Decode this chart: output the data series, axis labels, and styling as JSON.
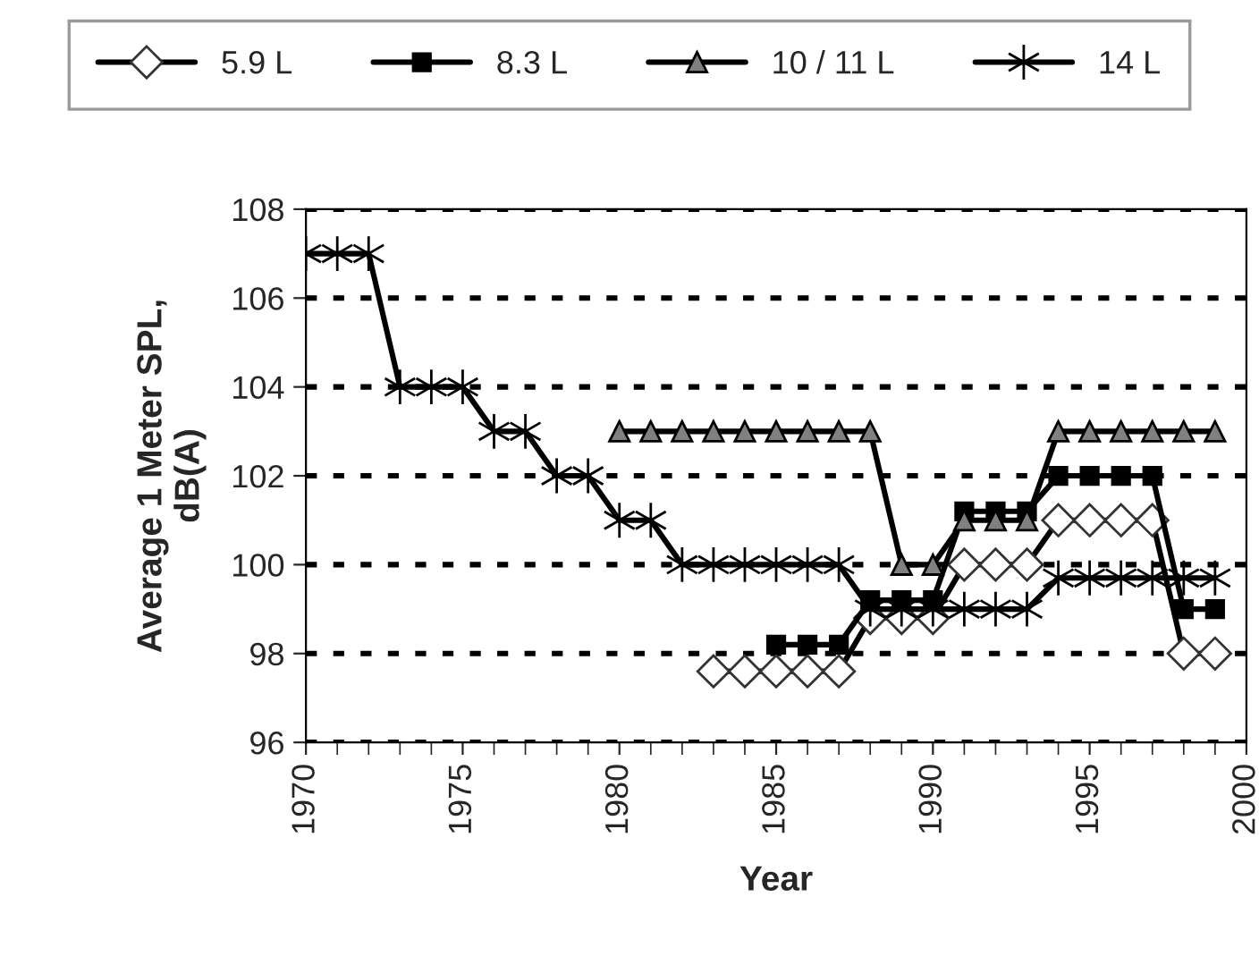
{
  "chart_data": {
    "type": "line",
    "xlabel": "Year",
    "ylabel": "Average 1 Meter SPL,\ndB(A)",
    "xlim": [
      1970,
      2000
    ],
    "xticks": [
      1970,
      1975,
      1980,
      1985,
      1990,
      1995,
      2000
    ],
    "ylim": [
      96,
      108
    ],
    "yticks": [
      96,
      98,
      100,
      102,
      104,
      106,
      108
    ],
    "grid": "y",
    "legend": "top",
    "line_style": "solid",
    "series": [
      {
        "name": "5.9 L",
        "color": "#000000",
        "marker": "diamond",
        "x": [
          1983,
          1984,
          1985,
          1986,
          1987,
          1988,
          1989,
          1990,
          1991,
          1992,
          1993,
          1994,
          1995,
          1996,
          1997,
          1998,
          1999
        ],
        "values": [
          97.6,
          97.6,
          97.6,
          97.6,
          97.6,
          98.8,
          98.8,
          98.8,
          100,
          100,
          100,
          101,
          101,
          101,
          101,
          98,
          98
        ]
      },
      {
        "name": "8.3 L",
        "color": "#000000",
        "marker": "square",
        "x": [
          1985,
          1986,
          1987,
          1988,
          1989,
          1990,
          1991,
          1992,
          1993,
          1994,
          1995,
          1996,
          1997,
          1998,
          1999
        ],
        "values": [
          98.2,
          98.2,
          98.2,
          99.2,
          99.2,
          99.2,
          101.2,
          101.2,
          101.2,
          102,
          102,
          102,
          102,
          99,
          99
        ]
      },
      {
        "name": "10 / 11 L",
        "color": "#000000",
        "marker": "triangle",
        "x": [
          1980,
          1981,
          1982,
          1983,
          1984,
          1985,
          1986,
          1987,
          1988,
          1989,
          1990,
          1991,
          1992,
          1993,
          1994,
          1995,
          1996,
          1997,
          1998,
          1999
        ],
        "values": [
          103,
          103,
          103,
          103,
          103,
          103,
          103,
          103,
          103,
          100,
          100,
          101,
          101,
          101,
          103,
          103,
          103,
          103,
          103,
          103
        ]
      },
      {
        "name": "14 L",
        "color": "#000000",
        "marker": "cross",
        "x": [
          1970,
          1971,
          1972,
          1973,
          1974,
          1975,
          1976,
          1977,
          1978,
          1979,
          1980,
          1981,
          1982,
          1983,
          1984,
          1985,
          1986,
          1987,
          1988,
          1989,
          1990,
          1991,
          1992,
          1993,
          1994,
          1995,
          1996,
          1997,
          1998,
          1999
        ],
        "values": [
          107,
          107,
          107,
          104,
          104,
          104,
          103,
          103,
          102,
          102,
          101,
          101,
          100,
          100,
          100,
          100,
          100,
          100,
          99,
          99,
          99,
          99,
          99,
          99,
          99.7,
          99.7,
          99.7,
          99.7,
          99.7,
          99.7
        ]
      }
    ]
  }
}
